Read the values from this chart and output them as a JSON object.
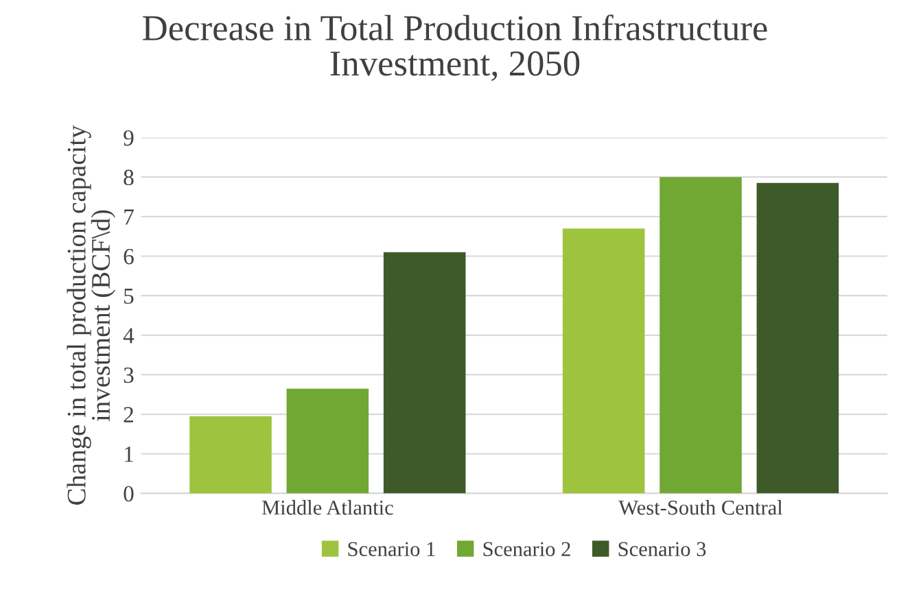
{
  "chart_data": {
    "type": "bar",
    "title": "Decrease in Total Production Infrastructure\nInvestment, 2050",
    "ylabel": "Change in total production capacity\ninvestment (BCF\\d)",
    "categories": [
      "Middle Atlantic",
      "West-South Central"
    ],
    "series": [
      {
        "name": "Scenario 1",
        "color": "#9ec43f",
        "values": [
          1.95,
          6.7
        ]
      },
      {
        "name": "Scenario 2",
        "color": "#71a834",
        "values": [
          2.65,
          8.0
        ]
      },
      {
        "name": "Scenario 3",
        "color": "#3e5a28",
        "values": [
          6.1,
          7.85
        ]
      }
    ],
    "ylim": [
      0,
      9
    ],
    "yticks": [
      0,
      1,
      2,
      3,
      4,
      5,
      6,
      7,
      8,
      9
    ],
    "grid": "y",
    "legend": "bottom"
  }
}
